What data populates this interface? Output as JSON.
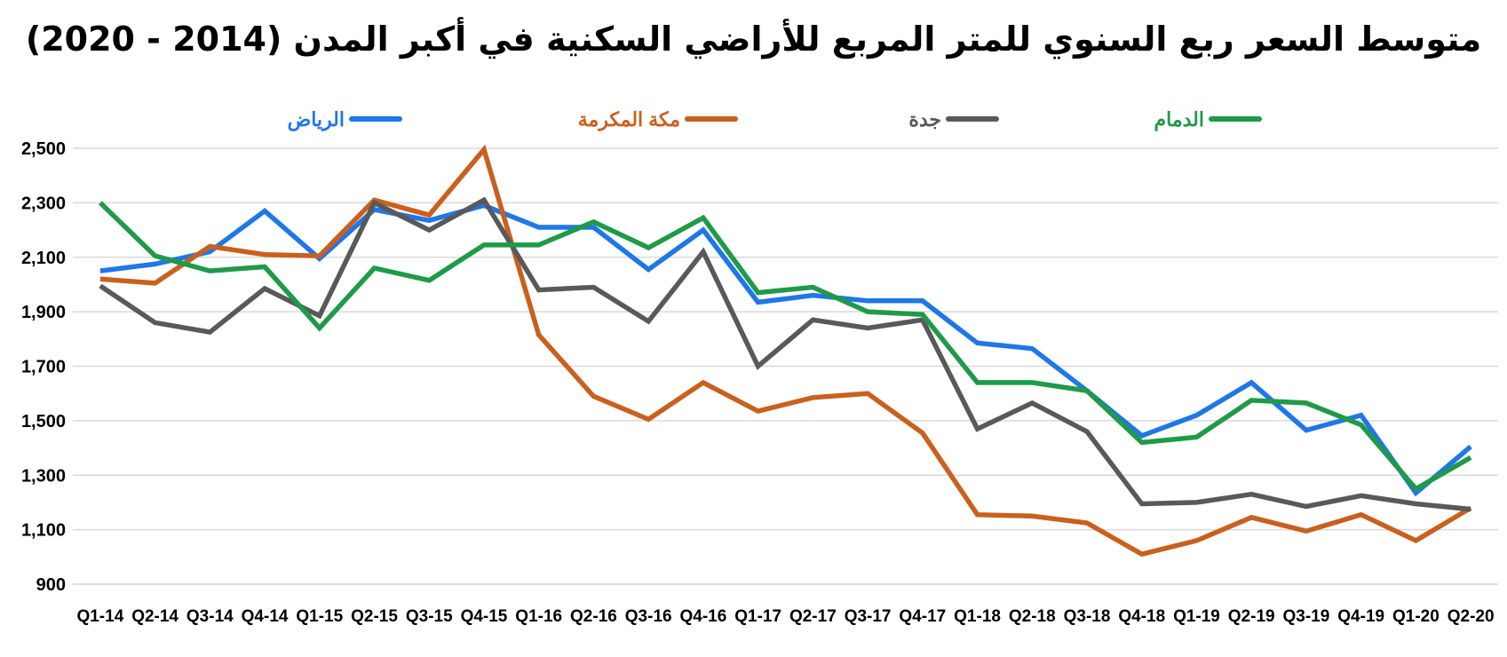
{
  "chart_data": {
    "type": "line",
    "title": "متوسط السعر ربع السنوي للمتر المربع للأراضي السكنية في أكبر المدن (2014 - 2020)",
    "xlabel": "",
    "ylabel": "",
    "ylim": [
      900,
      2500
    ],
    "yticks": [
      900,
      1100,
      1300,
      1500,
      1700,
      1900,
      2100,
      2300,
      2500
    ],
    "ytick_labels": [
      "900",
      "1,100",
      "1,300",
      "1,500",
      "1,700",
      "1,900",
      "2,100",
      "2,300",
      "2,500"
    ],
    "grid": true,
    "legend_position": "top",
    "categories": [
      "Q1-14",
      "Q2-14",
      "Q3-14",
      "Q4-14",
      "Q1-15",
      "Q2-15",
      "Q3-15",
      "Q4-15",
      "Q1-16",
      "Q2-16",
      "Q3-16",
      "Q4-16",
      "Q1-17",
      "Q2-17",
      "Q3-17",
      "Q4-17",
      "Q1-18",
      "Q2-18",
      "Q3-18",
      "Q4-18",
      "Q1-19",
      "Q2-19",
      "Q3-19",
      "Q4-19",
      "Q1-20",
      "Q2-20"
    ],
    "series": [
      {
        "name": "الرياض",
        "color": "#1f77e8",
        "values": [
          2050,
          2075,
          2120,
          2270,
          2095,
          2275,
          2235,
          2290,
          2210,
          2210,
          2055,
          2200,
          1935,
          1960,
          1940,
          1940,
          1785,
          1765,
          1610,
          1445,
          1520,
          1640,
          1465,
          1520,
          1235,
          1405
        ]
      },
      {
        "name": "مكة المكرمة",
        "color": "#c9601e",
        "values": [
          2020,
          2005,
          2140,
          2110,
          2105,
          2310,
          2255,
          2495,
          1815,
          1590,
          1505,
          1640,
          1535,
          1585,
          1600,
          1455,
          1155,
          1150,
          1125,
          1010,
          1060,
          1145,
          1095,
          1155,
          1060,
          1180
        ]
      },
      {
        "name": "جدة",
        "color": "#595959",
        "values": [
          1995,
          1860,
          1825,
          1985,
          1885,
          2300,
          2200,
          2310,
          1980,
          1990,
          1865,
          2120,
          1700,
          1870,
          1840,
          1870,
          1470,
          1565,
          1460,
          1195,
          1200,
          1230,
          1185,
          1225,
          1195,
          1175
        ]
      },
      {
        "name": "الدمام",
        "color": "#1f9a48",
        "values": [
          2300,
          2105,
          2050,
          2065,
          1840,
          2060,
          2015,
          2145,
          2145,
          2230,
          2135,
          2245,
          1970,
          1990,
          1900,
          1890,
          1640,
          1640,
          1610,
          1420,
          1440,
          1575,
          1565,
          1485,
          1250,
          1365
        ]
      }
    ]
  }
}
